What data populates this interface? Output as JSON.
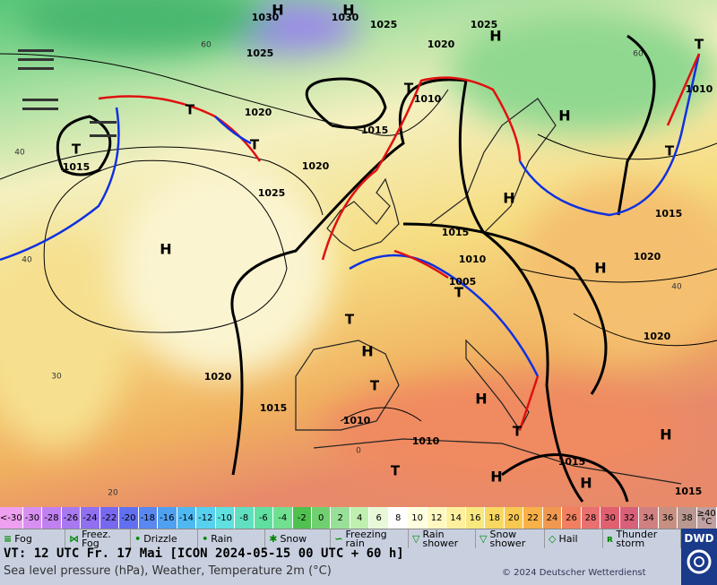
{
  "map": {
    "pressure_labels": [
      "1030",
      "1030",
      "1025",
      "1025",
      "1020",
      "1025",
      "1020",
      "1010",
      "1015",
      "1015",
      "1020",
      "1025",
      "1015",
      "1015",
      "1010",
      "1020",
      "1005",
      "1020",
      "1020",
      "1015",
      "1010",
      "1010",
      "1015",
      "1015",
      "1010"
    ],
    "high_labels": [
      "H",
      "H",
      "H",
      "H",
      "H",
      "H",
      "H",
      "H",
      "H",
      "H",
      "H",
      "H"
    ],
    "low_labels": [
      "T",
      "T",
      "T",
      "T",
      "T",
      "T",
      "T",
      "T",
      "T",
      "T",
      "T"
    ],
    "isotherm_labels": [
      "60",
      "40",
      "30",
      "20",
      "0",
      "40",
      "60",
      "40"
    ]
  },
  "color_scale": {
    "labels": [
      "<-30",
      "-30",
      "-28",
      "-26",
      "-24",
      "-22",
      "-20",
      "-18",
      "-16",
      "-14",
      "-12",
      "-10",
      "-8",
      "-6",
      "-4",
      "-2",
      "0",
      "2",
      "4",
      "6",
      "8",
      "10",
      "12",
      "14",
      "16",
      "18",
      "20",
      "22",
      "24",
      "26",
      "28",
      "30",
      "32",
      "34",
      "36",
      "38",
      "≥40 °C"
    ]
  },
  "legend": {
    "items": [
      "Fog",
      "Freez. Fog",
      "Drizzle",
      "Rain",
      "Snow",
      "Freezing rain",
      "Rain shower",
      "Snow shower",
      "Hail",
      "Thunder storm"
    ]
  },
  "footer": {
    "valid_time": "VT: 12 UTC Fr.  17 Mai [ICON 2024-05-15  00 UTC + 60 h]",
    "subtitle": "Sea level pressure (hPa), Weather, Temperature 2m (°C)",
    "copyright": "© 2024 Deutscher Wetterdienst",
    "logo": "DWD"
  }
}
